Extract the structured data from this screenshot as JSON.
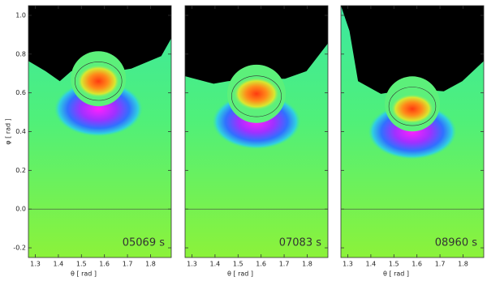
{
  "chart_data": [
    {
      "type": "image",
      "annotation": "05069 s",
      "xlabel": "θ [ rad ]",
      "ylabel": "φ [ rad ]",
      "xlim": [
        1.27,
        1.89
      ],
      "ylim": [
        -0.25,
        1.05
      ],
      "xticks": [
        1.3,
        1.4,
        1.5,
        1.6,
        1.7,
        1.8
      ],
      "yticks": [
        -0.2,
        {
          "value": 0,
          "label": "0.0"
        },
        0.2,
        0.4,
        0.6,
        0.8,
        {
          "value": 1,
          "label": "1.0"
        }
      ]
    },
    {
      "type": "image",
      "annotation": "07083 s",
      "xlabel": "θ [ rad ]",
      "xlim": [
        1.27,
        1.89
      ],
      "ylim": [
        -0.25,
        1.05
      ],
      "xticks": [
        1.3,
        1.4,
        1.5,
        1.6,
        1.7,
        1.8
      ]
    },
    {
      "type": "image",
      "annotation": "08960 s",
      "xlabel": "θ [ rad ]",
      "xlim": [
        1.27,
        1.89
      ],
      "ylim": [
        -0.25,
        1.05
      ],
      "xticks": [
        1.3,
        1.4,
        1.5,
        1.6,
        1.7,
        1.8
      ]
    }
  ]
}
